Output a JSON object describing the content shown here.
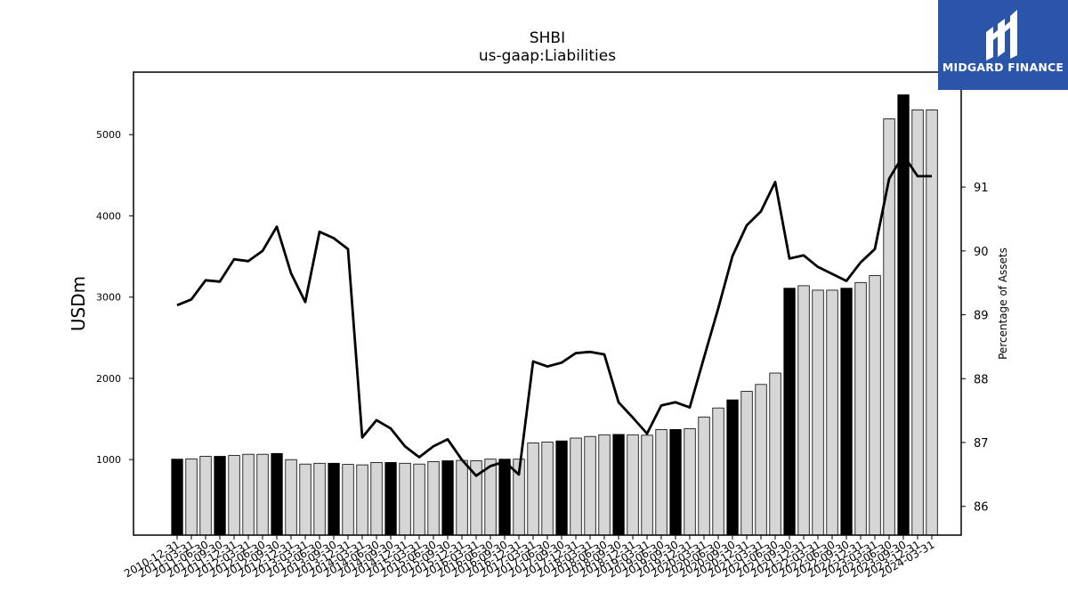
{
  "logo": {
    "text": "MIDGARD FINANCE",
    "background": "#2a55a8"
  },
  "chart_data": {
    "type": "bar",
    "title": "SHBI",
    "subtitle": "us-gaap:Liabilities",
    "ylabel": "USDm",
    "y2label": "Percentage of Assets",
    "ylim": [
      70,
      5770
    ],
    "y2lim": [
      85.55,
      92.8
    ],
    "yticks": [
      1000,
      2000,
      3000,
      4000,
      5000
    ],
    "y2ticks": [
      86,
      87,
      88,
      89,
      90,
      91
    ],
    "categories": [
      "2010-12-31",
      "2011-03-31",
      "2011-06-30",
      "2011-09-30",
      "2011-12-31",
      "2012-03-31",
      "2012-06-30",
      "2012-09-30",
      "2012-12-31",
      "2013-03-31",
      "2013-06-30",
      "2013-09-30",
      "2013-12-31",
      "2014-03-31",
      "2014-06-30",
      "2014-09-30",
      "2014-12-31",
      "2015-03-31",
      "2015-06-30",
      "2015-09-30",
      "2015-12-31",
      "2016-03-31",
      "2016-06-30",
      "2016-09-30",
      "2016-12-31",
      "2017-03-31",
      "2017-06-30",
      "2017-09-30",
      "2017-12-31",
      "2018-03-31",
      "2018-06-30",
      "2018-09-30",
      "2018-12-31",
      "2019-03-31",
      "2019-06-30",
      "2019-09-30",
      "2019-12-31",
      "2020-03-31",
      "2020-06-30",
      "2020-09-30",
      "2020-12-31",
      "2021-03-31",
      "2021-06-30",
      "2021-09-30",
      "2021-12-31",
      "2022-03-31",
      "2022-06-30",
      "2022-09-30",
      "2022-12-31",
      "2023-03-31",
      "2023-06-30",
      "2023-09-30",
      "2023-12-31",
      "2024-03-31"
    ],
    "x_tick_labels": [
      "2010-12-31",
      "2011-03-31",
      "2011-06-30",
      "2011-09-30",
      "2011-12-31",
      "2012-03-31",
      "2012-06-30",
      "2012-09-30",
      "2012-12-31",
      "2013-03-31",
      "2013-06-30",
      "2013-09-30",
      "2013-12-31",
      "2014-03-31",
      "2014-06-30",
      "2014-09-30",
      "2014-12-31",
      "2015-03-31",
      "2015-06-30",
      "2015-09-30",
      "2015-12-31",
      "2016-03-31",
      "2016-06-30",
      "2016-09-30",
      "2016-12-31",
      "2017-03-31",
      "2017-06-30",
      "2017-09-30",
      "2017-12-31",
      "2018-03-31",
      "2018-06-30",
      "2018-09-30",
      "2018-12-31",
      "2019-03-31",
      "2019-06-30",
      "2019-09-30",
      "2019-12-31",
      "2020-03-31",
      "2020-06-30",
      "2020-09-30",
      "2020-12-31",
      "2021-03-31",
      "2021-06-30",
      "2021-09-30",
      "2021-12-31",
      "2022-03-31",
      "2022-06-30",
      "2022-09-30",
      "2022-12-31",
      "2023-03-31",
      "2023-06-30",
      "2023-09-30",
      "2023-12-31",
      "2024-03-31"
    ],
    "series": [
      {
        "type": "bar",
        "axis": "left",
        "values": [
          1005,
          1008,
          1040,
          1040,
          1050,
          1065,
          1065,
          1075,
          1000,
          945,
          955,
          955,
          940,
          935,
          965,
          965,
          955,
          945,
          975,
          985,
          990,
          985,
          1005,
          1005,
          1005,
          1205,
          1215,
          1230,
          1265,
          1285,
          1305,
          1310,
          1305,
          1300,
          1370,
          1370,
          1380,
          1525,
          1635,
          1735,
          1840,
          1925,
          2065,
          3110,
          3140,
          3085,
          3085,
          3110,
          3180,
          3265,
          5195,
          5490,
          5305,
          5305
        ],
        "highlight": [
          true,
          false,
          false,
          true,
          false,
          false,
          false,
          true,
          false,
          false,
          false,
          true,
          false,
          false,
          false,
          true,
          false,
          false,
          false,
          true,
          false,
          false,
          false,
          true,
          false,
          false,
          false,
          true,
          false,
          false,
          false,
          true,
          false,
          false,
          false,
          true,
          false,
          false,
          false,
          true,
          false,
          false,
          false,
          true,
          false,
          false,
          false,
          true,
          false,
          false,
          false,
          true,
          false,
          false
        ]
      },
      {
        "type": "line",
        "axis": "right",
        "values": [
          89.15,
          89.24,
          89.54,
          89.52,
          89.87,
          89.84,
          90.0,
          90.38,
          89.65,
          89.2,
          90.3,
          90.2,
          90.03,
          87.08,
          87.35,
          87.22,
          86.94,
          86.77,
          86.94,
          87.05,
          86.73,
          86.48,
          86.63,
          86.7,
          86.5,
          88.27,
          88.19,
          88.25,
          88.4,
          88.42,
          88.38,
          87.63,
          87.39,
          87.14,
          87.58,
          87.63,
          87.55,
          88.33,
          89.1,
          89.92,
          90.4,
          90.62,
          91.08,
          89.88,
          89.93,
          89.75,
          89.64,
          89.53,
          89.82,
          90.03,
          91.13,
          91.5,
          91.17,
          91.17
        ]
      }
    ],
    "colors": {
      "bar_dark": "#000000",
      "bar_light": "#d6d6d6",
      "line": "#000000"
    },
    "grid": false,
    "legend": "none"
  }
}
